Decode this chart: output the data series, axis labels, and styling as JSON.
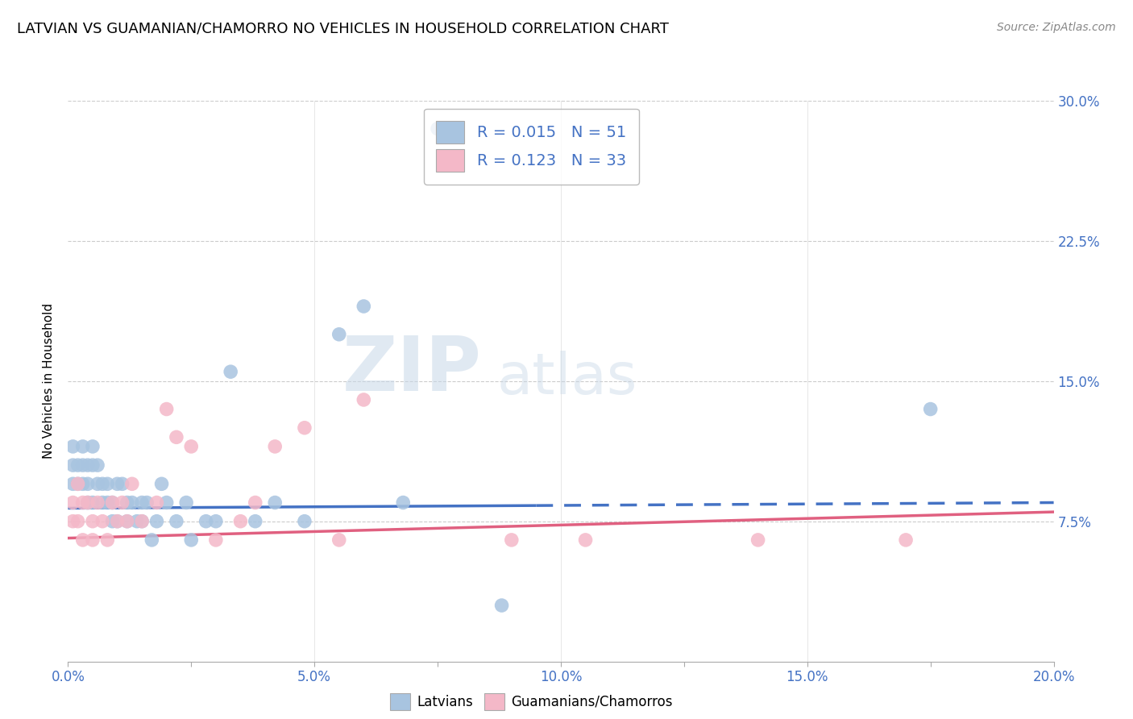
{
  "title": "LATVIAN VS GUAMANIAN/CHAMORRO NO VEHICLES IN HOUSEHOLD CORRELATION CHART",
  "source": "Source: ZipAtlas.com",
  "ylabel": "No Vehicles in Household",
  "xlabel": "",
  "xlim": [
    0.0,
    0.2
  ],
  "ylim": [
    0.0,
    0.3
  ],
  "xtick_labels": [
    "0.0%",
    "",
    "5.0%",
    "",
    "10.0%",
    "",
    "15.0%",
    "",
    "20.0%"
  ],
  "xtick_values": [
    0.0,
    0.025,
    0.05,
    0.075,
    0.1,
    0.125,
    0.15,
    0.175,
    0.2
  ],
  "ytick_labels": [
    "7.5%",
    "15.0%",
    "22.5%",
    "30.0%"
  ],
  "ytick_values": [
    0.075,
    0.15,
    0.225,
    0.3
  ],
  "latvian_R": 0.015,
  "latvian_N": 51,
  "guam_R": 0.123,
  "guam_N": 33,
  "latvian_color": "#a8c4e0",
  "guam_color": "#f4b8c8",
  "trendline_latvian_color": "#4472c4",
  "trendline_guam_color": "#e06080",
  "watermark_zip": "ZIP",
  "watermark_atlas": "atlas",
  "latvian_x": [
    0.001,
    0.001,
    0.001,
    0.002,
    0.002,
    0.003,
    0.003,
    0.003,
    0.004,
    0.004,
    0.004,
    0.005,
    0.005,
    0.005,
    0.006,
    0.006,
    0.007,
    0.007,
    0.008,
    0.008,
    0.009,
    0.009,
    0.01,
    0.01,
    0.011,
    0.012,
    0.012,
    0.013,
    0.014,
    0.015,
    0.015,
    0.016,
    0.017,
    0.018,
    0.019,
    0.02,
    0.022,
    0.024,
    0.025,
    0.028,
    0.03,
    0.033,
    0.038,
    0.042,
    0.048,
    0.055,
    0.06,
    0.068,
    0.075,
    0.088,
    0.175
  ],
  "latvian_y": [
    0.115,
    0.105,
    0.095,
    0.105,
    0.095,
    0.115,
    0.105,
    0.095,
    0.105,
    0.095,
    0.085,
    0.115,
    0.105,
    0.085,
    0.105,
    0.095,
    0.095,
    0.085,
    0.095,
    0.085,
    0.085,
    0.075,
    0.095,
    0.075,
    0.095,
    0.085,
    0.075,
    0.085,
    0.075,
    0.085,
    0.075,
    0.085,
    0.065,
    0.075,
    0.095,
    0.085,
    0.075,
    0.085,
    0.065,
    0.075,
    0.075,
    0.155,
    0.075,
    0.085,
    0.075,
    0.175,
    0.19,
    0.085,
    0.285,
    0.03,
    0.135
  ],
  "guam_x": [
    0.001,
    0.001,
    0.002,
    0.002,
    0.003,
    0.003,
    0.004,
    0.005,
    0.005,
    0.006,
    0.007,
    0.008,
    0.009,
    0.01,
    0.011,
    0.012,
    0.013,
    0.015,
    0.018,
    0.02,
    0.022,
    0.025,
    0.03,
    0.035,
    0.038,
    0.042,
    0.048,
    0.055,
    0.06,
    0.09,
    0.105,
    0.14,
    0.17
  ],
  "guam_y": [
    0.085,
    0.075,
    0.095,
    0.075,
    0.085,
    0.065,
    0.085,
    0.075,
    0.065,
    0.085,
    0.075,
    0.065,
    0.085,
    0.075,
    0.085,
    0.075,
    0.095,
    0.075,
    0.085,
    0.135,
    0.12,
    0.115,
    0.065,
    0.075,
    0.085,
    0.115,
    0.125,
    0.065,
    0.14,
    0.065,
    0.065,
    0.065,
    0.065
  ],
  "latvian_trend_x": [
    0.0,
    0.095,
    0.095,
    0.2
  ],
  "latvian_trend_solid_end": 0.095,
  "latvian_trend_y_start": 0.082,
  "latvian_trend_y_end": 0.085,
  "guam_trend_y_start": 0.066,
  "guam_trend_y_end": 0.08
}
